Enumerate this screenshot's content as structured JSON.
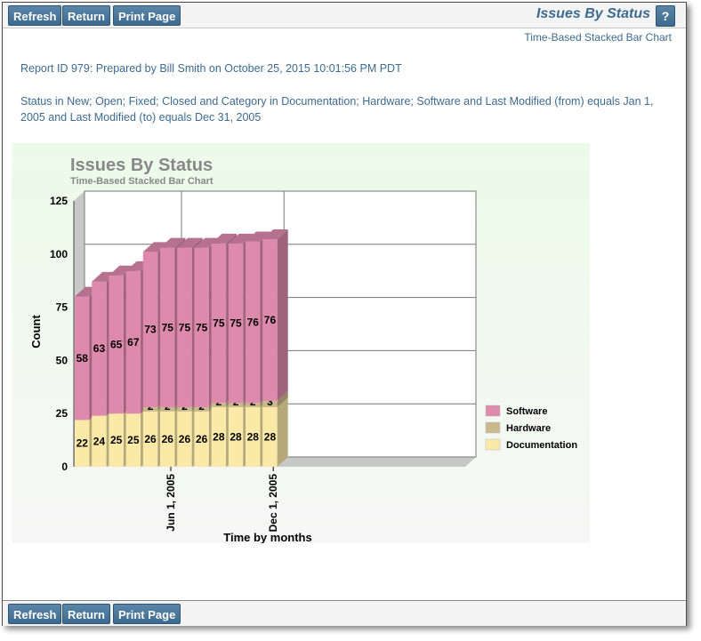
{
  "toolbar": {
    "refresh": "Refresh",
    "return": "Return",
    "print": "Print Page",
    "help": "?"
  },
  "page": {
    "title": "Issues By Status",
    "subtitle": "Time-Based Stacked Bar Chart",
    "report_line": "Report ID 979: Prepared by Bill Smith on October 25, 2015 10:01:56 PM PDT",
    "filter_line1": "Status in New; Open; Fixed; Closed and Category in Documentation; Hardware; Software and Last Modified (from) equals Jan 1,",
    "filter_line2": "2005 and Last Modified (to) equals Dec 31, 2005"
  },
  "colors": {
    "documentation": "#fbe9a8",
    "hardware": "#c9b98c",
    "software": "#dd8aac"
  },
  "chart_data": {
    "type": "bar",
    "stacked": true,
    "title": "Issues By Status",
    "subtitle": "Time-Based Stacked Bar Chart",
    "xlabel": "Time by months",
    "ylabel": "Count",
    "ylim": [
      0,
      125
    ],
    "yticks": [
      0,
      25,
      50,
      75,
      100,
      125
    ],
    "xtick_labels": [
      "Jun 1, 2005",
      "Dec 1, 2005"
    ],
    "legend_position": "right",
    "series": [
      {
        "name": "Documentation",
        "values": [
          22,
          24,
          25,
          25,
          26,
          26,
          26,
          26,
          28,
          28,
          28,
          28
        ]
      },
      {
        "name": "Hardware",
        "values": [
          0,
          0,
          0,
          0,
          2,
          2,
          2,
          2,
          2,
          2,
          2,
          3
        ]
      },
      {
        "name": "Software",
        "values": [
          58,
          63,
          65,
          67,
          73,
          75,
          75,
          75,
          75,
          75,
          76,
          76
        ]
      }
    ]
  }
}
